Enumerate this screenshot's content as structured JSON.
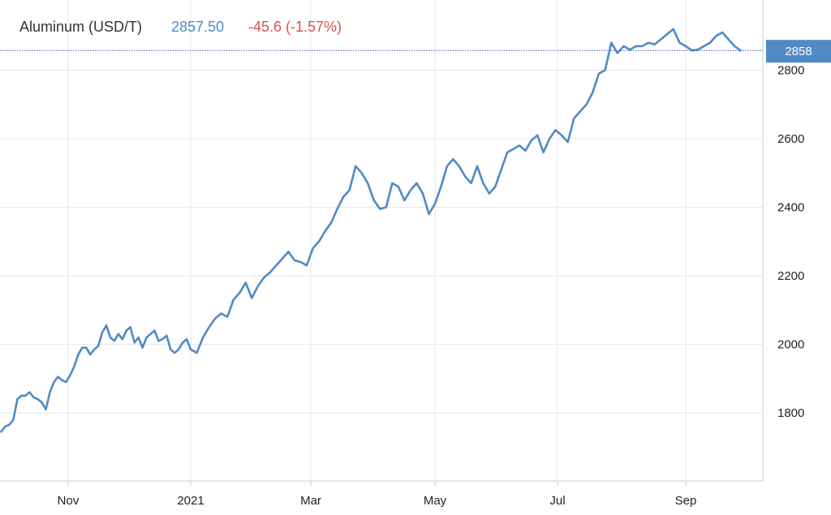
{
  "header": {
    "instrument": "Aluminum (USD/T)",
    "price": "2857.50",
    "change": "-45.6 (-1.57%)"
  },
  "last_badge": {
    "label": "2858",
    "value": 2857.5
  },
  "colors": {
    "line": "#4f8ac6",
    "price_text": "#4f8ac6",
    "change_text": "#d9534f",
    "badge_bg": "#4f8ac6",
    "badge_text": "#ffffff",
    "grid": "#e6e6e6",
    "ref_line": "#3a56c8"
  },
  "chart_data": {
    "type": "line",
    "title": "Aluminum (USD/T)",
    "xlabel": "",
    "ylabel": "",
    "grid": true,
    "legend": "none",
    "ylim": [
      1640,
      2960
    ],
    "x_ticks": [
      "Nov",
      "2021",
      "Mar",
      "May",
      "Jul",
      "Sep"
    ],
    "y_ticks": [
      1800,
      2000,
      2200,
      2400,
      2600,
      2800
    ],
    "series": [
      {
        "name": "Aluminum",
        "x": [
          "2020-09-29",
          "2020-10-01",
          "2020-10-03",
          "2020-10-05",
          "2020-10-07",
          "2020-10-09",
          "2020-10-11",
          "2020-10-13",
          "2020-10-15",
          "2020-10-17",
          "2020-10-19",
          "2020-10-21",
          "2020-10-23",
          "2020-10-25",
          "2020-10-27",
          "2020-10-29",
          "2020-10-31",
          "2020-11-02",
          "2020-11-04",
          "2020-11-06",
          "2020-11-08",
          "2020-11-10",
          "2020-11-12",
          "2020-11-14",
          "2020-11-16",
          "2020-11-18",
          "2020-11-20",
          "2020-11-22",
          "2020-11-24",
          "2020-11-26",
          "2020-11-28",
          "2020-11-30",
          "2020-12-02",
          "2020-12-04",
          "2020-12-06",
          "2020-12-08",
          "2020-12-10",
          "2020-12-12",
          "2020-12-14",
          "2020-12-16",
          "2020-12-18",
          "2020-12-20",
          "2020-12-22",
          "2020-12-24",
          "2020-12-26",
          "2020-12-28",
          "2020-12-30",
          "2021-01-01",
          "2021-01-04",
          "2021-01-07",
          "2021-01-10",
          "2021-01-13",
          "2021-01-16",
          "2021-01-19",
          "2021-01-22",
          "2021-01-25",
          "2021-01-28",
          "2021-01-31",
          "2021-02-03",
          "2021-02-06",
          "2021-02-09",
          "2021-02-12",
          "2021-02-15",
          "2021-02-18",
          "2021-02-21",
          "2021-02-24",
          "2021-02-27",
          "2021-03-02",
          "2021-03-05",
          "2021-03-08",
          "2021-03-11",
          "2021-03-14",
          "2021-03-17",
          "2021-03-20",
          "2021-03-23",
          "2021-03-26",
          "2021-03-29",
          "2021-04-01",
          "2021-04-04",
          "2021-04-07",
          "2021-04-10",
          "2021-04-13",
          "2021-04-16",
          "2021-04-19",
          "2021-04-22",
          "2021-04-25",
          "2021-04-28",
          "2021-05-01",
          "2021-05-04",
          "2021-05-07",
          "2021-05-10",
          "2021-05-13",
          "2021-05-16",
          "2021-05-19",
          "2021-05-22",
          "2021-05-25",
          "2021-05-28",
          "2021-05-31",
          "2021-06-03",
          "2021-06-06",
          "2021-06-09",
          "2021-06-12",
          "2021-06-15",
          "2021-06-18",
          "2021-06-21",
          "2021-06-24",
          "2021-06-27",
          "2021-06-30",
          "2021-07-03",
          "2021-07-06",
          "2021-07-09",
          "2021-07-12",
          "2021-07-15",
          "2021-07-18",
          "2021-07-21",
          "2021-07-24",
          "2021-07-27",
          "2021-07-30",
          "2021-08-02",
          "2021-08-05",
          "2021-08-08",
          "2021-08-11",
          "2021-08-14",
          "2021-08-17",
          "2021-08-20",
          "2021-08-23",
          "2021-08-26",
          "2021-08-29",
          "2021-09-01",
          "2021-09-04",
          "2021-09-07",
          "2021-09-10",
          "2021-09-13",
          "2021-09-16",
          "2021-09-19",
          "2021-09-22",
          "2021-09-25",
          "2021-09-28"
        ],
        "values": [
          1745,
          1760,
          1765,
          1780,
          1840,
          1850,
          1850,
          1860,
          1845,
          1840,
          1830,
          1810,
          1860,
          1890,
          1905,
          1895,
          1890,
          1910,
          1935,
          1970,
          1990,
          1990,
          1970,
          1985,
          1995,
          2035,
          2055,
          2020,
          2010,
          2030,
          2015,
          2040,
          2050,
          2005,
          2020,
          1990,
          2020,
          2030,
          2040,
          2010,
          2015,
          2025,
          1985,
          1975,
          1985,
          2005,
          2015,
          1985,
          1975,
          2020,
          2050,
          2075,
          2090,
          2080,
          2130,
          2150,
          2180,
          2135,
          2170,
          2195,
          2210,
          2230,
          2250,
          2270,
          2245,
          2240,
          2230,
          2280,
          2300,
          2330,
          2355,
          2395,
          2430,
          2450,
          2520,
          2500,
          2470,
          2420,
          2395,
          2400,
          2470,
          2460,
          2420,
          2450,
          2470,
          2440,
          2380,
          2410,
          2460,
          2520,
          2540,
          2520,
          2490,
          2470,
          2520,
          2470,
          2440,
          2460,
          2510,
          2560,
          2570,
          2580,
          2565,
          2595,
          2610,
          2560,
          2600,
          2625,
          2610,
          2590,
          2660,
          2680,
          2700,
          2735,
          2790,
          2800,
          2880,
          2850,
          2870,
          2860,
          2870,
          2870,
          2880,
          2875,
          2890,
          2905,
          2920,
          2880,
          2870,
          2857.5,
          2860,
          2870,
          2880,
          2900,
          2910,
          2890,
          2870,
          2857.5
        ]
      }
    ]
  }
}
